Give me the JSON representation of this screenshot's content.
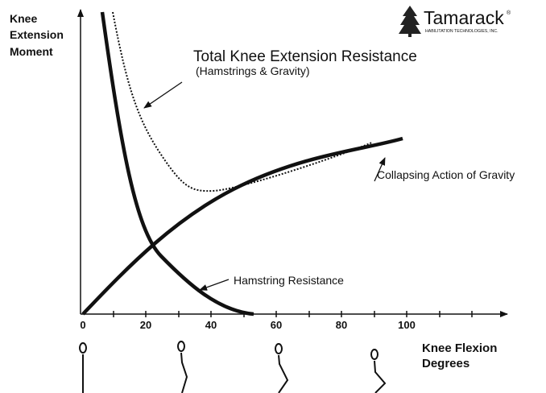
{
  "logo": {
    "name": "Tamarack",
    "mark": "®",
    "tagline": "HABILITATION TECHNOLOGIES, INC."
  },
  "y_axis_label": [
    "Knee",
    "Extension",
    "Moment"
  ],
  "x_axis_label": [
    "Knee Flexion",
    "Degrees"
  ],
  "x_ticks": [
    "0",
    "20",
    "40",
    "60",
    "80",
    "100"
  ],
  "title": "Total Knee Extension Resistance",
  "subtitle": "(Hamstrings & Gravity)",
  "labels": {
    "gravity": "Collapsing Action of Gravity",
    "hamstring": "Hamstring Resistance"
  }
}
